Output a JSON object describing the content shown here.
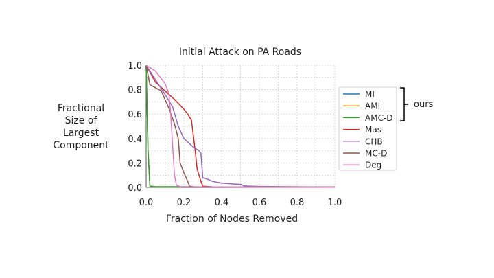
{
  "chart_data": {
    "type": "line",
    "title": "Initial Attack on PA Roads",
    "xlabel": "Fraction of Nodes Removed",
    "ylabel_lines": [
      "Fractional",
      "Size of",
      "Largest",
      "Component"
    ],
    "xlim": [
      0.0,
      1.0
    ],
    "ylim": [
      0.0,
      1.0
    ],
    "xticks": [
      "0.0",
      "0.2",
      "0.4",
      "0.6",
      "0.8",
      "1.0"
    ],
    "yticks": [
      "0.0",
      "0.2",
      "0.4",
      "0.6",
      "0.8",
      "1.0"
    ],
    "grid": true,
    "legend_position": "right",
    "bracket_label": "ours",
    "series": [
      {
        "name": "MI",
        "color": "#1f77b4",
        "points": [
          [
            0.0,
            1.0
          ],
          [
            0.01,
            0.3
          ],
          [
            0.02,
            0.01
          ],
          [
            0.05,
            0.005
          ],
          [
            1.0,
            0.003
          ]
        ]
      },
      {
        "name": "AMI",
        "color": "#ff7f0e",
        "points": [
          [
            0.0,
            1.0
          ],
          [
            0.01,
            0.3
          ],
          [
            0.02,
            0.01
          ],
          [
            0.05,
            0.005
          ],
          [
            1.0,
            0.003
          ]
        ]
      },
      {
        "name": "AMC-D",
        "color": "#2ca02c",
        "points": [
          [
            0.0,
            1.0
          ],
          [
            0.01,
            0.3
          ],
          [
            0.02,
            0.01
          ],
          [
            0.05,
            0.005
          ],
          [
            1.0,
            0.003
          ]
        ]
      },
      {
        "name": "Mas",
        "color": "#d62728",
        "points": [
          [
            0.0,
            1.0
          ],
          [
            0.05,
            0.86
          ],
          [
            0.1,
            0.79
          ],
          [
            0.15,
            0.72
          ],
          [
            0.2,
            0.64
          ],
          [
            0.22,
            0.6
          ],
          [
            0.24,
            0.55
          ],
          [
            0.26,
            0.3
          ],
          [
            0.27,
            0.15
          ],
          [
            0.29,
            0.05
          ],
          [
            0.3,
            0.01
          ],
          [
            0.35,
            0.005
          ],
          [
            1.0,
            0.002
          ]
        ]
      },
      {
        "name": "CHB",
        "color": "#9467bd",
        "points": [
          [
            0.0,
            1.0
          ],
          [
            0.05,
            0.88
          ],
          [
            0.1,
            0.76
          ],
          [
            0.14,
            0.66
          ],
          [
            0.17,
            0.5
          ],
          [
            0.2,
            0.4
          ],
          [
            0.25,
            0.33
          ],
          [
            0.28,
            0.3
          ],
          [
            0.29,
            0.28
          ],
          [
            0.3,
            0.08
          ],
          [
            0.32,
            0.07
          ],
          [
            0.35,
            0.05
          ],
          [
            0.4,
            0.035
          ],
          [
            0.45,
            0.03
          ],
          [
            0.5,
            0.025
          ],
          [
            0.52,
            0.012
          ],
          [
            0.6,
            0.008
          ],
          [
            0.8,
            0.005
          ],
          [
            1.0,
            0.003
          ]
        ]
      },
      {
        "name": "MC-D",
        "color": "#8c564b",
        "points": [
          [
            0.0,
            1.0
          ],
          [
            0.02,
            0.84
          ],
          [
            0.08,
            0.79
          ],
          [
            0.12,
            0.65
          ],
          [
            0.15,
            0.52
          ],
          [
            0.17,
            0.4
          ],
          [
            0.18,
            0.2
          ],
          [
            0.2,
            0.12
          ],
          [
            0.22,
            0.05
          ],
          [
            0.23,
            0.01
          ],
          [
            0.25,
            0.005
          ],
          [
            1.0,
            0.002
          ]
        ]
      },
      {
        "name": "Deg",
        "color": "#e377c2",
        "points": [
          [
            0.0,
            1.0
          ],
          [
            0.05,
            0.95
          ],
          [
            0.1,
            0.85
          ],
          [
            0.12,
            0.77
          ],
          [
            0.13,
            0.6
          ],
          [
            0.14,
            0.35
          ],
          [
            0.15,
            0.1
          ],
          [
            0.16,
            0.02
          ],
          [
            0.18,
            0.005
          ],
          [
            1.0,
            0.002
          ]
        ]
      }
    ]
  }
}
